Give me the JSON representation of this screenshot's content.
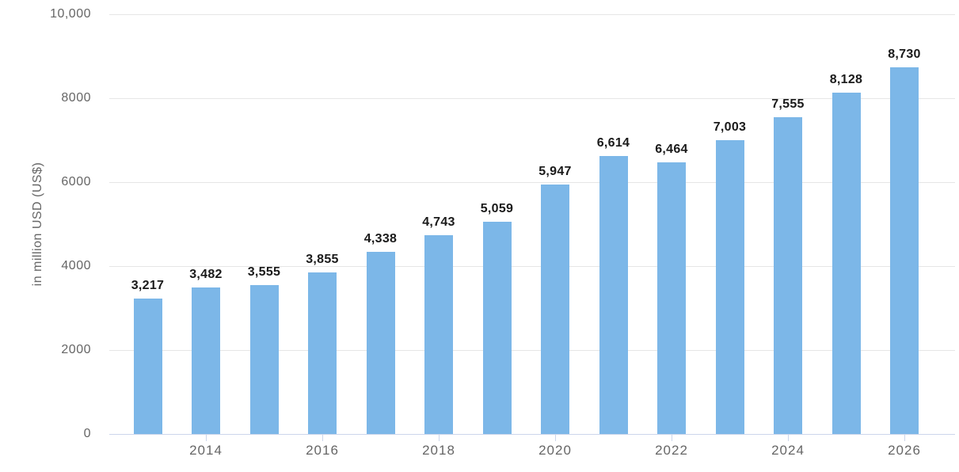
{
  "chart_data": {
    "type": "bar",
    "title": "",
    "xlabel": "",
    "ylabel": "in million USD (US$)",
    "categories": [
      2013,
      2014,
      2015,
      2016,
      2017,
      2018,
      2019,
      2020,
      2021,
      2022,
      2023,
      2024,
      2025,
      2026
    ],
    "values": [
      3217,
      3482,
      3555,
      3855,
      4338,
      4743,
      5059,
      5947,
      6614,
      6464,
      7003,
      7555,
      8128,
      8730
    ],
    "value_labels": [
      "3,217",
      "3,482",
      "3,555",
      "3,855",
      "4,338",
      "4,743",
      "5,059",
      "5,947",
      "6,614",
      "6,464",
      "7,003",
      "7,555",
      "8,128",
      "8,730"
    ],
    "ylim": [
      0,
      10000
    ],
    "y_ticks": [
      {
        "value": 0,
        "label": "0"
      },
      {
        "value": 2000,
        "label": "2000"
      },
      {
        "value": 4000,
        "label": "4000"
      },
      {
        "value": 6000,
        "label": "6000"
      },
      {
        "value": 8000,
        "label": "8000"
      },
      {
        "value": 10000,
        "label": "10,000"
      }
    ],
    "x_ticks": [
      {
        "category": 2014,
        "label": "2014"
      },
      {
        "category": 2016,
        "label": "2016"
      },
      {
        "category": 2018,
        "label": "2018"
      },
      {
        "category": 2020,
        "label": "2020"
      },
      {
        "category": 2022,
        "label": "2022"
      },
      {
        "category": 2024,
        "label": "2024"
      },
      {
        "category": 2026,
        "label": "2026"
      }
    ],
    "grid": true,
    "legend": "none",
    "colors": {
      "bar": "#7cb7e8",
      "gridline": "#e6e6e6",
      "axis_line": "#ccd6eb",
      "tick_label": "#666666",
      "data_label": "#1a1a1a"
    }
  }
}
